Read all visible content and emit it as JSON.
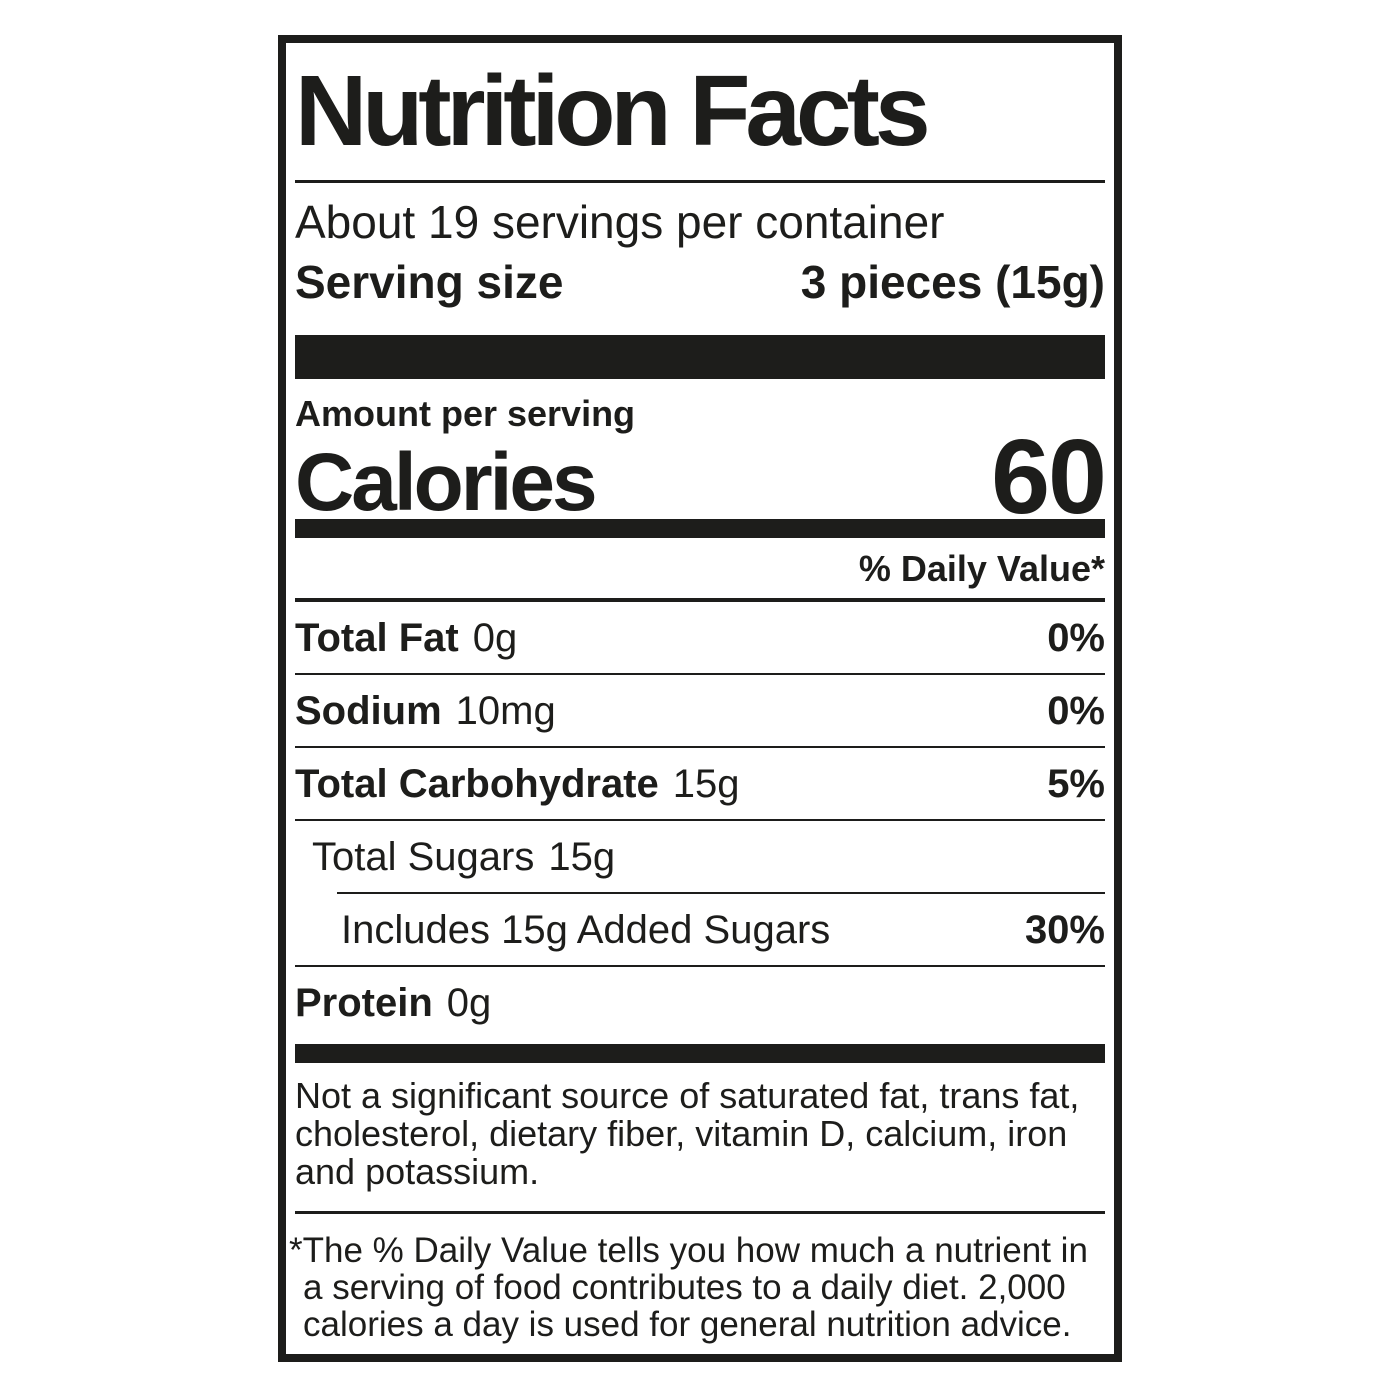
{
  "colors": {
    "ink": "#1d1d1b",
    "background": "#ffffff"
  },
  "label": {
    "title": "Nutrition Facts",
    "servings_per_container": "About 19 servings per container",
    "serving_size_label": "Serving size",
    "serving_size_value": "3 pieces (15g)",
    "amount_per_serving": "Amount per serving",
    "calories_label": "Calories",
    "calories_value": "60",
    "daily_value_header": "% Daily Value*",
    "rows": [
      {
        "name": "Total Fat",
        "amount": "0g",
        "dv": "0%"
      },
      {
        "name": "Sodium",
        "amount": "10mg",
        "dv": "0%"
      },
      {
        "name": "Total Carbohydrate",
        "amount": "15g",
        "dv": "5%"
      },
      {
        "name": "Total Sugars",
        "amount": "15g",
        "dv": ""
      },
      {
        "name": "Includes 15g Added Sugars",
        "amount": "",
        "dv": "30%"
      },
      {
        "name": "Protein",
        "amount": "0g",
        "dv": ""
      }
    ],
    "not_significant": "Not a significant source of saturated fat, trans fat, cholesterol, dietary fiber, vitamin D, calcium, iron and potassium.",
    "footnote": "*The % Daily Value tells you how much a nutrient in a serving of food contributes to a daily diet. 2,000 calories a day is used for general nutrition advice."
  }
}
